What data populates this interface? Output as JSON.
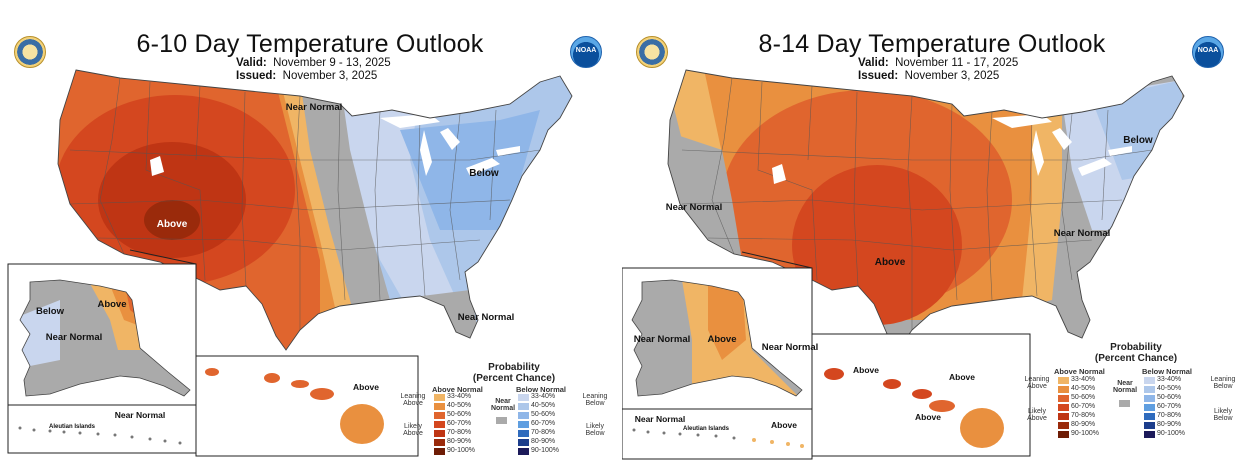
{
  "colors": {
    "a33": "#f0b565",
    "a40": "#e9903f",
    "a50": "#e0652e",
    "a60": "#d4471f",
    "a70": "#bf3514",
    "a80": "#9a2a0b",
    "a90": "#6e1c05",
    "b33": "#c9d6ee",
    "b40": "#adc7ea",
    "b50": "#8fb6e8",
    "b60": "#5f9ee0",
    "b70": "#2f6bbd",
    "b80": "#1c3d8c",
    "b90": "#1c1a5a",
    "nn": "#aaaaaa"
  },
  "legend": {
    "title_line1": "Probability",
    "title_line2": "(Percent Chance)",
    "above_header": "Above Normal",
    "below_header": "Below Normal",
    "near_normal": "Near Normal",
    "leaning_above": "Leaning Above",
    "likely_above": "Likely Above",
    "leaning_below": "Leaning Below",
    "likely_below": "Likely Below",
    "bins": [
      "33-40%",
      "40-50%",
      "50-60%",
      "60-70%",
      "70-80%",
      "80-90%",
      "90-100%"
    ]
  },
  "panels": [
    {
      "title": "6-10 Day Temperature Outlook",
      "valid_label": "Valid:",
      "valid_value": "November 9 - 13, 2025",
      "issued_label": "Issued:",
      "issued_value": "November 3, 2025",
      "labels": {
        "conus_above": "Above",
        "conus_near": "Near Normal",
        "conus_below": "Below",
        "se_near": "Near Normal",
        "ak_above": "Above",
        "ak_below": "Below",
        "ak_near": "Near Normal",
        "aleutian": "Aleutian Islands",
        "aleutian_near": "Near Normal",
        "hi_above": "Above"
      }
    },
    {
      "title": "8-14 Day Temperature Outlook",
      "valid_label": "Valid:",
      "valid_value": "November 11 - 17, 2025",
      "issued_label": "Issued:",
      "issued_value": "November 3, 2025",
      "labels": {
        "conus_above": "Above",
        "west_near": "Near Normal",
        "east_near": "Near Normal",
        "ne_below": "Below",
        "ak_near_west": "Near Normal",
        "ak_above": "Above",
        "ak_near_east": "Near Normal",
        "aleutian": "Aleutian Islands",
        "aleutian_near": "Near Normal",
        "aleutian_above": "Above",
        "hi_above_1": "Above",
        "hi_above_2": "Above",
        "hi_above_3": "Above"
      }
    }
  ]
}
